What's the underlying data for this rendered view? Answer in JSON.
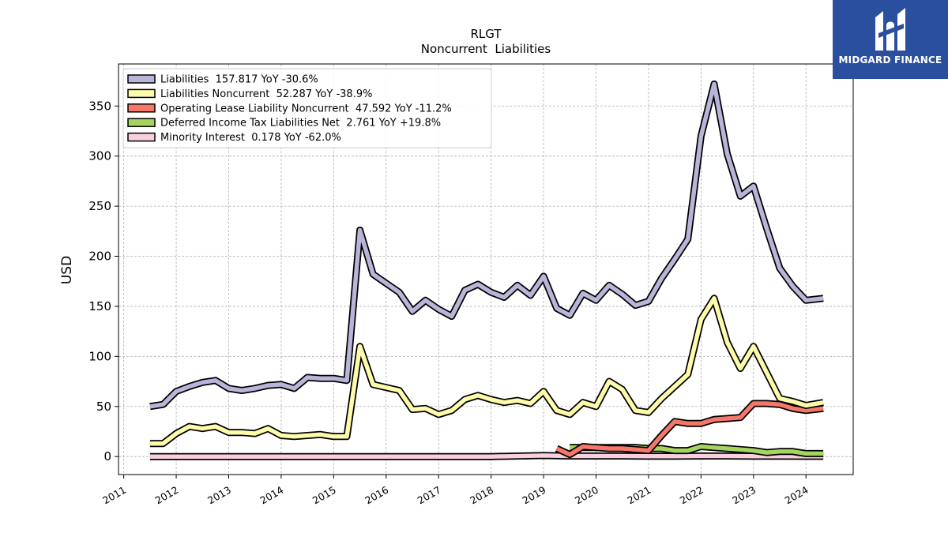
{
  "chart_data": {
    "type": "line",
    "title": "RLGT",
    "subtitle": "Noncurrent  Liabilities",
    "ylabel": "USD",
    "xlabel": "",
    "xlim": [
      2010.9,
      2024.9
    ],
    "ylim": [
      -18,
      392
    ],
    "x_ticks": [
      "2011",
      "2012",
      "2013",
      "2014",
      "2015",
      "2016",
      "2017",
      "2018",
      "2019",
      "2020",
      "2021",
      "2022",
      "2023",
      "2024"
    ],
    "y_ticks": [
      0,
      50,
      100,
      150,
      200,
      250,
      300,
      350
    ],
    "grid": true,
    "legend_position": "top-left",
    "series": [
      {
        "name": "Liabilities  157.817 YoY -30.6%",
        "color": "#b7b5d8",
        "x": [
          2011.5,
          2011.75,
          2012.0,
          2012.25,
          2012.5,
          2012.75,
          2013.0,
          2013.25,
          2013.5,
          2013.75,
          2014.0,
          2014.25,
          2014.5,
          2014.75,
          2015.0,
          2015.25,
          2015.5,
          2015.75,
          2016.0,
          2016.25,
          2016.5,
          2016.75,
          2017.0,
          2017.25,
          2017.5,
          2017.75,
          2018.0,
          2018.25,
          2018.5,
          2018.75,
          2019.0,
          2019.25,
          2019.5,
          2019.75,
          2020.0,
          2020.25,
          2020.5,
          2020.75,
          2021.0,
          2021.25,
          2021.5,
          2021.75,
          2022.0,
          2022.25,
          2022.5,
          2022.75,
          2023.0,
          2023.25,
          2023.5,
          2023.75,
          2024.0,
          2024.33
        ],
        "values": [
          50,
          52,
          65,
          70,
          74,
          76,
          68,
          66,
          68,
          71,
          72,
          68,
          79,
          78,
          78,
          76,
          226,
          182,
          173,
          164,
          145,
          156,
          147,
          140,
          166,
          172,
          164,
          159,
          171,
          161,
          180,
          148,
          141,
          163,
          156,
          171,
          162,
          151,
          155,
          178,
          197,
          217,
          320,
          372,
          302,
          260,
          270,
          228,
          188,
          170,
          156,
          158
        ]
      },
      {
        "name": "Liabilities Noncurrent  52.287 YoY -38.9%",
        "color": "#fdfcaa",
        "x": [
          2011.5,
          2011.75,
          2012.0,
          2012.25,
          2012.5,
          2012.75,
          2013.0,
          2013.25,
          2013.5,
          2013.75,
          2014.0,
          2014.25,
          2014.5,
          2014.75,
          2015.0,
          2015.25,
          2015.5,
          2015.75,
          2016.0,
          2016.25,
          2016.5,
          2016.75,
          2017.0,
          2017.25,
          2017.5,
          2017.75,
          2018.0,
          2018.25,
          2018.5,
          2018.75,
          2019.0,
          2019.25,
          2019.5,
          2019.75,
          2020.0,
          2020.25,
          2020.5,
          2020.75,
          2021.0,
          2021.25,
          2021.5,
          2021.75,
          2022.0,
          2022.25,
          2022.5,
          2022.75,
          2023.0,
          2023.25,
          2023.5,
          2023.75,
          2024.0,
          2024.33
        ],
        "values": [
          13,
          13,
          23,
          30,
          28,
          30,
          24,
          24,
          23,
          28,
          21,
          20,
          21,
          22,
          20,
          20,
          110,
          72,
          69,
          66,
          47,
          48,
          42,
          46,
          57,
          61,
          57,
          54,
          56,
          53,
          65,
          46,
          42,
          54,
          50,
          75,
          67,
          46,
          44,
          58,
          70,
          82,
          137,
          158,
          114,
          88,
          110,
          84,
          58,
          55,
          51,
          54
        ]
      },
      {
        "name": "Operating Lease Liability Noncurrent  47.592 YoY -11.2%",
        "color": "#f4776a",
        "x": [
          2019.25,
          2019.5,
          2019.75,
          2020.0,
          2020.25,
          2020.5,
          2020.75,
          2021.0,
          2021.25,
          2021.5,
          2021.75,
          2022.0,
          2022.25,
          2022.5,
          2022.75,
          2023.0,
          2023.25,
          2023.5,
          2023.75,
          2024.0,
          2024.33
        ],
        "values": [
          8,
          2,
          10,
          9,
          8,
          8,
          7,
          6,
          21,
          35,
          33,
          33,
          37,
          38,
          39,
          53,
          53,
          52,
          48,
          46,
          48
        ]
      },
      {
        "name": "Deferred Income Tax Liabilities Net  2.761 YoY +19.8%",
        "color": "#a5d45f",
        "x": [
          2019.5,
          2019.75,
          2020.0,
          2020.25,
          2020.5,
          2020.75,
          2021.0,
          2021.25,
          2021.5,
          2021.75,
          2022.0,
          2022.25,
          2022.5,
          2022.75,
          2023.0,
          2023.25,
          2023.5,
          2023.75,
          2024.0,
          2024.33
        ],
        "values": [
          9,
          9,
          9,
          9,
          9,
          9,
          8,
          8,
          6,
          6,
          10,
          9,
          8,
          7,
          6,
          4,
          5,
          5,
          3,
          3
        ]
      },
      {
        "name": "Minority Interest  0.178 YoY -62.0%",
        "color": "#f8cfdf",
        "x": [
          2011.5,
          2012.0,
          2013.0,
          2014.0,
          2015.0,
          2016.0,
          2017.0,
          2018.0,
          2019.0,
          2019.5,
          2020.0,
          2020.5,
          2021.0,
          2021.5,
          2022.0,
          2022.5,
          2023.0,
          2023.5,
          2024.0,
          2024.33
        ],
        "values": [
          0,
          0,
          0,
          0,
          0,
          0,
          0,
          0,
          1,
          0.5,
          0.5,
          0.5,
          0.4,
          0.4,
          0.5,
          0.5,
          0.4,
          0.4,
          0.2,
          0.2
        ]
      }
    ]
  },
  "logo": {
    "text": "MIDGARD FINANCE"
  }
}
